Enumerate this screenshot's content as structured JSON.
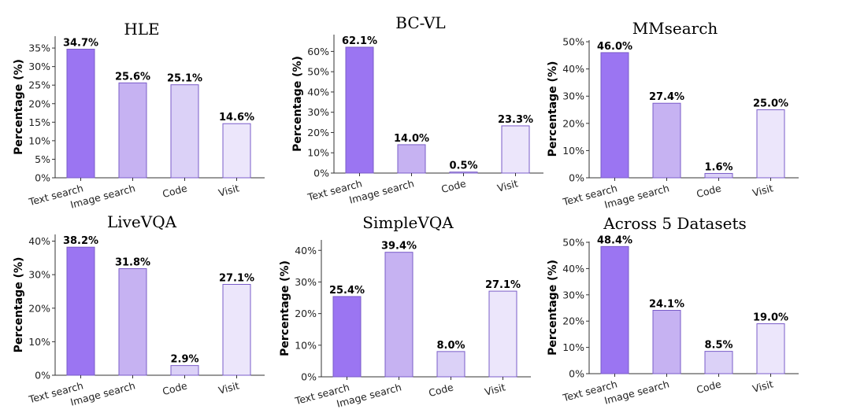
{
  "chart_data": [
    {
      "type": "bar",
      "title": "HLE",
      "ylabel": "Percentage (%)",
      "categories": [
        "Text search",
        "Image search",
        "Code",
        "Visit"
      ],
      "values": [
        34.7,
        25.6,
        25.1,
        14.6
      ],
      "value_labels": [
        "34.7%",
        "25.6%",
        "25.1%",
        "14.6%"
      ],
      "yticks": [
        "0%",
        "5%",
        "10%",
        "15%",
        "20%",
        "25%",
        "30%",
        "35%"
      ],
      "ytick_values": [
        0,
        5,
        10,
        15,
        20,
        25,
        30,
        35
      ],
      "ylim": [
        0,
        38.2
      ],
      "grid": false
    },
    {
      "type": "bar",
      "title": "BC-VL",
      "ylabel": "Percentage (%)",
      "categories": [
        "Text search",
        "Image search",
        "Code",
        "Visit"
      ],
      "values": [
        62.1,
        14.0,
        0.5,
        23.3
      ],
      "value_labels": [
        "62.1%",
        "14.0%",
        "0.5%",
        "23.3%"
      ],
      "yticks": [
        "0%",
        "10%",
        "20%",
        "30%",
        "40%",
        "50%",
        "60%"
      ],
      "ytick_values": [
        0,
        10,
        20,
        30,
        40,
        50,
        60
      ],
      "ylim": [
        0,
        68.3
      ],
      "grid": false
    },
    {
      "type": "bar",
      "title": "MMsearch",
      "ylabel": "Percentage (%)",
      "categories": [
        "Text search",
        "Image search",
        "Code",
        "Visit"
      ],
      "values": [
        46.0,
        27.4,
        1.6,
        25.0
      ],
      "value_labels": [
        "46.0%",
        "27.4%",
        "1.6%",
        "25.0%"
      ],
      "yticks": [
        "0%",
        "10%",
        "20%",
        "30%",
        "40%",
        "50%"
      ],
      "ytick_values": [
        0,
        10,
        20,
        30,
        40,
        50
      ],
      "ylim": [
        0,
        50.6
      ],
      "grid": false
    },
    {
      "type": "bar",
      "title": "LiveVQA",
      "ylabel": "Percentage (%)",
      "categories": [
        "Text search",
        "Image search",
        "Code",
        "Visit"
      ],
      "values": [
        38.2,
        31.8,
        2.9,
        27.1
      ],
      "value_labels": [
        "38.2%",
        "31.8%",
        "2.9%",
        "27.1%"
      ],
      "yticks": [
        "0%",
        "10%",
        "20%",
        "30%",
        "40%"
      ],
      "ytick_values": [
        0,
        10,
        20,
        30,
        40
      ],
      "ylim": [
        0,
        42.0
      ],
      "grid": false
    },
    {
      "type": "bar",
      "title": "SimpleVQA",
      "ylabel": "Percentage (%)",
      "categories": [
        "Text search",
        "Image search",
        "Code",
        "Visit"
      ],
      "values": [
        25.4,
        39.4,
        8.0,
        27.1
      ],
      "value_labels": [
        "25.4%",
        "39.4%",
        "8.0%",
        "27.1%"
      ],
      "yticks": [
        "0%",
        "10%",
        "20%",
        "30%",
        "40%"
      ],
      "ytick_values": [
        0,
        10,
        20,
        30,
        40
      ],
      "ylim": [
        0,
        43.3
      ],
      "grid": false
    },
    {
      "type": "bar",
      "title": "Across 5 Datasets",
      "ylabel": "Percentage (%)",
      "categories": [
        "Text search",
        "Image search",
        "Code",
        "Visit"
      ],
      "values": [
        48.4,
        24.1,
        8.5,
        19.0
      ],
      "value_labels": [
        "48.4%",
        "24.1%",
        "8.5%",
        "19.0%"
      ],
      "yticks": [
        "0%",
        "10%",
        "20%",
        "30%",
        "40%",
        "50%"
      ],
      "ytick_values": [
        0,
        10,
        20,
        30,
        40,
        50
      ],
      "ylim": [
        0,
        50.3
      ],
      "grid": false
    }
  ],
  "colors": {
    "bar_fills": [
      "#9b75f2",
      "#c6b2f2",
      "#dbd1f7",
      "#ece6fb"
    ],
    "bar_edge": "#7a5cc8"
  }
}
